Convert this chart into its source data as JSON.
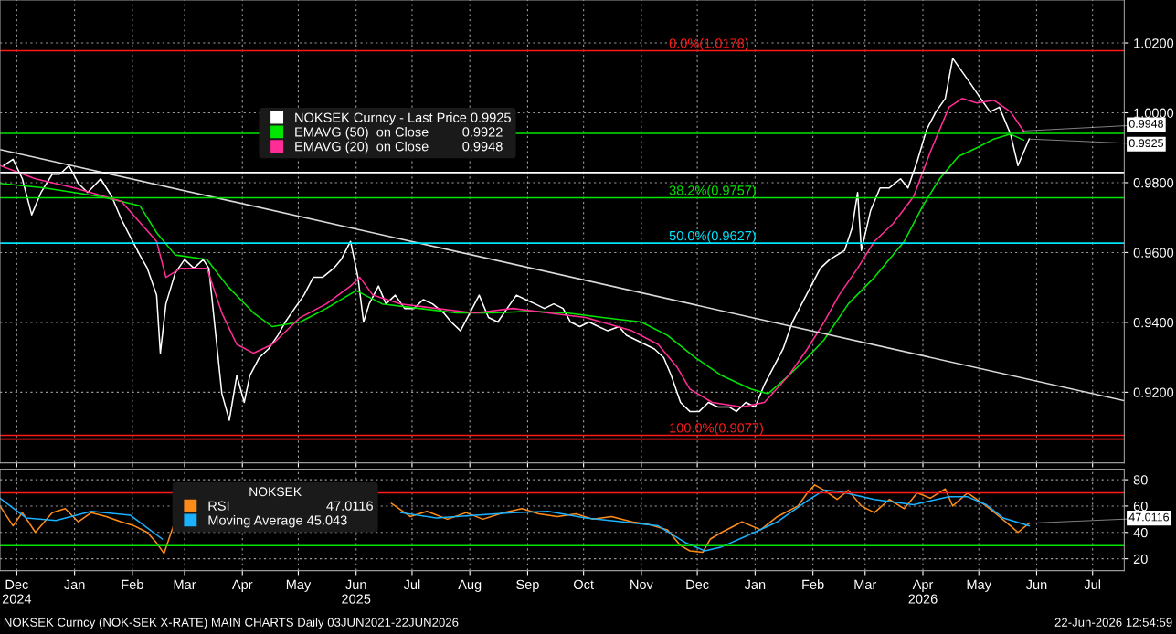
{
  "chart_data": [
    {
      "type": "line",
      "xlim": [
        "2024-12-06",
        "2026-08-01"
      ],
      "ylim": [
        0.8998,
        1.0323
      ],
      "yticks": [
        {
          "value": 0.92,
          "label": "0.9200"
        },
        {
          "value": 0.94,
          "label": "0.9400"
        },
        {
          "value": 0.96,
          "label": "0.9600"
        },
        {
          "value": 0.98,
          "label": "0.9800"
        },
        {
          "value": 1.0,
          "label": "1.0000"
        },
        {
          "value": 1.02,
          "label": "1.0200"
        }
      ],
      "xticks": [
        {
          "value": "2024-12-15",
          "label": null
        },
        {
          "value": "2025-01-15",
          "label": null
        },
        {
          "value": "2025-02-15",
          "label": null
        },
        {
          "value": "2025-03-15",
          "label": null
        },
        {
          "value": "2025-04-15",
          "label": null
        },
        {
          "value": "2025-05-15",
          "label": null
        },
        {
          "value": "2025-06-15",
          "label": null
        },
        {
          "value": "2025-07-15",
          "label": null
        },
        {
          "value": "2025-08-15",
          "label": null
        },
        {
          "value": "2025-09-15",
          "label": null
        },
        {
          "value": "2025-10-15",
          "label": null
        },
        {
          "value": "2025-11-15",
          "label": null
        },
        {
          "value": "2025-12-15",
          "label": null
        },
        {
          "value": "2026-01-15",
          "label": null
        },
        {
          "value": "2026-02-15",
          "label": null
        },
        {
          "value": "2026-03-15",
          "label": null
        },
        {
          "value": "2026-04-15",
          "label": null
        },
        {
          "value": "2026-05-15",
          "label": null
        },
        {
          "value": "2026-06-15",
          "label": null
        },
        {
          "value": "2026-07-15",
          "label": null
        }
      ],
      "tick_labels": "y",
      "grid": true,
      "legend": "top left",
      "series": [
        {
          "name": "NOKSEK Curncy - Last Price 0.9925",
          "color": "#ffffff",
          "x": [
            "2024-12-08",
            "2024-12-13",
            "2024-12-18",
            "2024-12-23",
            "2024-12-28",
            "2025-01-03",
            "2025-01-07",
            "2025-01-12",
            "2025-01-17",
            "2025-01-22",
            "2025-01-29",
            "2025-02-04",
            "2025-02-09",
            "2025-02-14",
            "2025-02-19",
            "2025-02-23",
            "2025-02-28",
            "2025-03-02",
            "2025-03-05",
            "2025-03-10",
            "2025-03-15",
            "2025-03-20",
            "2025-03-25",
            "2025-03-28",
            "2025-04-01",
            "2025-04-04",
            "2025-04-08",
            "2025-04-12",
            "2025-04-16",
            "2025-04-19",
            "2025-04-24",
            "2025-04-29",
            "2025-05-04",
            "2025-05-08",
            "2025-05-13",
            "2025-05-18",
            "2025-05-23",
            "2025-05-28",
            "2025-06-03",
            "2025-06-07",
            "2025-06-12",
            "2025-06-16",
            "2025-06-19",
            "2025-06-22",
            "2025-06-27",
            "2025-07-01",
            "2025-07-06",
            "2025-07-11",
            "2025-07-16",
            "2025-07-21",
            "2025-07-26",
            "2025-08-01",
            "2025-08-05",
            "2025-08-10",
            "2025-08-15",
            "2025-08-20",
            "2025-08-25",
            "2025-08-30",
            "2025-09-04",
            "2025-09-09",
            "2025-09-14",
            "2025-09-19",
            "2025-09-24",
            "2025-09-29",
            "2025-10-04",
            "2025-10-08",
            "2025-10-13",
            "2025-10-18",
            "2025-10-23",
            "2025-10-28",
            "2025-11-03",
            "2025-11-07",
            "2025-11-12",
            "2025-11-17",
            "2025-11-22",
            "2025-11-27",
            "2025-12-01",
            "2025-12-06",
            "2025-12-11",
            "2025-12-16",
            "2025-12-21",
            "2025-12-26",
            "2026-01-01",
            "2026-01-05",
            "2026-01-10",
            "2026-01-15",
            "2026-01-20",
            "2026-01-25",
            "2026-01-30",
            "2026-02-04",
            "2026-02-09",
            "2026-02-14",
            "2026-02-19",
            "2026-02-24",
            "2026-02-28",
            "2026-03-04",
            "2026-03-08",
            "2026-03-11",
            "2026-03-13",
            "2026-03-18",
            "2026-03-23",
            "2026-03-28",
            "2026-04-03",
            "2026-04-07",
            "2026-04-12",
            "2026-04-17",
            "2026-04-22",
            "2026-04-27",
            "2026-05-01",
            "2026-05-06",
            "2026-05-11",
            "2026-05-16",
            "2026-05-21",
            "2026-05-26",
            "2026-06-01",
            "2026-06-05",
            "2026-06-11"
          ],
          "values": [
            0.9849,
            0.9867,
            0.9811,
            0.9708,
            0.9772,
            0.9824,
            0.9824,
            0.9849,
            0.9798,
            0.9772,
            0.9811,
            0.976,
            0.9696,
            0.9644,
            0.9593,
            0.9555,
            0.9478,
            0.9312,
            0.9453,
            0.9542,
            0.958,
            0.9555,
            0.958,
            0.9555,
            0.935,
            0.9196,
            0.912,
            0.9248,
            0.9171,
            0.9248,
            0.9299,
            0.9324,
            0.9363,
            0.9401,
            0.944,
            0.9478,
            0.9529,
            0.9529,
            0.9555,
            0.958,
            0.9632,
            0.9529,
            0.9401,
            0.9453,
            0.9504,
            0.9453,
            0.9478,
            0.944,
            0.944,
            0.9465,
            0.9453,
            0.9427,
            0.9401,
            0.9376,
            0.9427,
            0.9478,
            0.9414,
            0.9401,
            0.944,
            0.9478,
            0.9465,
            0.9453,
            0.944,
            0.9453,
            0.944,
            0.9401,
            0.9388,
            0.9401,
            0.9388,
            0.9376,
            0.9388,
            0.9363,
            0.935,
            0.9337,
            0.9324,
            0.9299,
            0.9248,
            0.9171,
            0.9145,
            0.9145,
            0.9171,
            0.9158,
            0.9158,
            0.9145,
            0.9171,
            0.9158,
            0.9222,
            0.9273,
            0.9324,
            0.9401,
            0.9453,
            0.9504,
            0.9555,
            0.958,
            0.9593,
            0.9606,
            0.967,
            0.9772,
            0.9606,
            0.9721,
            0.9785,
            0.9785,
            0.9811,
            0.9785,
            0.9862,
            0.9952,
            1.0003,
            1.0041,
            1.0156,
            1.0118,
            1.008,
            1.0041,
            1.0003,
            1.0016,
            0.9939,
            0.9849,
            0.9925
          ]
        },
        {
          "name": "EMAVG (50)  on Close         0.9922",
          "color": "#00e600",
          "x": [
            "2024-12-06",
            "2024-12-30",
            "2025-01-29",
            "2025-02-19",
            "2025-02-28",
            "2025-03-10",
            "2025-03-27",
            "2025-04-07",
            "2025-04-21",
            "2025-05-01",
            "2025-05-16",
            "2025-05-30",
            "2025-06-15",
            "2025-06-29",
            "2025-07-19",
            "2025-08-08",
            "2025-08-27",
            "2025-09-16",
            "2025-10-06",
            "2025-10-25",
            "2025-11-15",
            "2025-11-29",
            "2025-12-14",
            "2025-12-28",
            "2026-01-13",
            "2026-01-22",
            "2026-02-02",
            "2026-02-12",
            "2026-02-21",
            "2026-03-06",
            "2026-03-20",
            "2026-04-05",
            "2026-04-15",
            "2026-04-24",
            "2026-05-04",
            "2026-05-14",
            "2026-05-23",
            "2026-06-01",
            "2026-06-08"
          ],
          "values": [
            0.9798,
            0.9785,
            0.976,
            0.9734,
            0.9657,
            0.9593,
            0.958,
            0.9504,
            0.9427,
            0.9388,
            0.9401,
            0.944,
            0.9491,
            0.9453,
            0.944,
            0.9427,
            0.9427,
            0.9432,
            0.9427,
            0.9414,
            0.9401,
            0.9363,
            0.9299,
            0.9248,
            0.9209,
            0.9196,
            0.9248,
            0.9299,
            0.935,
            0.9453,
            0.9529,
            0.9632,
            0.9734,
            0.9811,
            0.9875,
            0.99,
            0.9925,
            0.9939,
            0.9922
          ]
        },
        {
          "name": "EMAVG (20)  on Close         0.9948",
          "color": "#ff2d95",
          "x": [
            "2024-12-06",
            "2024-12-25",
            "2025-01-15",
            "2025-02-09",
            "2025-02-28",
            "2025-03-05",
            "2025-03-13",
            "2025-03-27",
            "2025-04-04",
            "2025-04-12",
            "2025-04-21",
            "2025-05-01",
            "2025-05-16",
            "2025-05-30",
            "2025-06-12",
            "2025-06-17",
            "2025-06-24",
            "2025-07-09",
            "2025-07-28",
            "2025-08-18",
            "2025-09-07",
            "2025-09-26",
            "2025-10-16",
            "2025-11-10",
            "2025-11-24",
            "2025-12-04",
            "2025-12-11",
            "2025-12-23",
            "2026-01-08",
            "2026-01-20",
            "2026-02-02",
            "2026-02-12",
            "2026-02-21",
            "2026-03-01",
            "2026-03-11",
            "2026-03-20",
            "2026-03-30",
            "2026-04-10",
            "2026-04-19",
            "2026-04-29",
            "2026-05-06",
            "2026-05-14",
            "2026-05-23",
            "2026-06-01",
            "2026-06-08"
          ],
          "values": [
            0.9849,
            0.9811,
            0.9785,
            0.9747,
            0.9632,
            0.9529,
            0.9555,
            0.9555,
            0.9427,
            0.9337,
            0.9312,
            0.9337,
            0.9414,
            0.9453,
            0.9504,
            0.9529,
            0.9478,
            0.9453,
            0.944,
            0.9427,
            0.944,
            0.9427,
            0.9414,
            0.9376,
            0.9337,
            0.9273,
            0.9209,
            0.9171,
            0.9158,
            0.9171,
            0.9248,
            0.9324,
            0.9401,
            0.9478,
            0.9555,
            0.9632,
            0.9683,
            0.976,
            0.9888,
            1.0016,
            1.0041,
            1.0028,
            1.0036,
            1.0003,
            0.9948
          ]
        },
        {
          "type": "line",
          "color": "#d9d9d9",
          "x": [
            "2024-12-06",
            "2026-08-01"
          ],
          "values": [
            0.9895,
            0.9176
          ]
        }
      ],
      "ref_lines": [
        {
          "axis": "y",
          "value": 1.0178,
          "label": "0.0%(1.0178)",
          "color": "#ff1a1a"
        },
        {
          "axis": "y",
          "value": 0.9941,
          "color": "#00e600"
        },
        {
          "axis": "y",
          "value": 0.9829,
          "color": "#ffffff"
        },
        {
          "axis": "y",
          "value": 0.9757,
          "label": "38.2%(0.9757)",
          "color": "#00e600"
        },
        {
          "axis": "y",
          "value": 0.9627,
          "label": "50.0%(0.9627)",
          "color": "#00e5ff"
        },
        {
          "axis": "y",
          "value": 0.9077,
          "label": "100.0%(0.9077)",
          "color": "#ff1a1a"
        },
        {
          "axis": "y",
          "value": 0.9066,
          "color": "#ff1a1a"
        }
      ],
      "annotations": [
        {
          "text": "0.9948",
          "x": "2026-06-08",
          "y": 0.9948
        },
        {
          "text": "0.9925",
          "x": "2026-06-11",
          "y": 0.9925
        }
      ]
    },
    {
      "type": "line",
      "xlim": [
        "2024-12-06",
        "2026-08-01"
      ],
      "ylim": [
        11,
        88
      ],
      "yticks": [
        20,
        40,
        60,
        80
      ],
      "xticks": [
        {
          "value": "2024-12-15",
          "label": "Dec\n2024"
        },
        {
          "value": "2025-01-15",
          "label": "Jan"
        },
        {
          "value": "2025-02-15",
          "label": "Feb"
        },
        {
          "value": "2025-03-15",
          "label": "Mar"
        },
        {
          "value": "2025-04-15",
          "label": "Apr"
        },
        {
          "value": "2025-05-15",
          "label": "May"
        },
        {
          "value": "2025-06-15",
          "label": "Jun\n2025"
        },
        {
          "value": "2025-07-15",
          "label": "Jul"
        },
        {
          "value": "2025-08-15",
          "label": "Aug"
        },
        {
          "value": "2025-09-15",
          "label": "Sep"
        },
        {
          "value": "2025-10-15",
          "label": "Oct"
        },
        {
          "value": "2025-11-15",
          "label": "Nov"
        },
        {
          "value": "2025-12-15",
          "label": "Dec"
        },
        {
          "value": "2026-01-15",
          "label": "Jan"
        },
        {
          "value": "2026-02-15",
          "label": "Feb"
        },
        {
          "value": "2026-03-15",
          "label": "Mar"
        },
        {
          "value": "2026-04-15",
          "label": "Apr\n2026"
        },
        {
          "value": "2026-05-15",
          "label": "May"
        },
        {
          "value": "2026-06-15",
          "label": "Jun"
        },
        {
          "value": "2026-07-15",
          "label": "Jul"
        }
      ],
      "grid": true,
      "legend": "top left",
      "legend_title": "NOKSEK",
      "series": [
        {
          "name": "RSI                          47.0116",
          "color": "#ff8c1a",
          "x": [
            "2024-12-06",
            "2024-12-13",
            "2024-12-18",
            "2024-12-25",
            "2025-01-03",
            "2025-01-10",
            "2025-01-17",
            "2025-01-24",
            "2025-02-01",
            "2025-02-09",
            "2025-02-16",
            "2025-02-23",
            "2025-02-28",
            "2025-03-04",
            "2025-03-09",
            "2025-03-15",
            "2025-03-22",
            "2025-03-28",
            "2025-04-02",
            "2025-04-06",
            "2025-04-13",
            "2025-04-21",
            "2025-04-29",
            "2025-05-06",
            "2025-05-13",
            "2025-05-23",
            "2025-06-03",
            "2025-06-10",
            "2025-06-17",
            "2025-06-24",
            "2025-07-04",
            "2025-07-14",
            "2025-07-23",
            "2025-08-03",
            "2025-08-13",
            "2025-08-22",
            "2025-09-02",
            "2025-09-12",
            "2025-09-21",
            "2025-10-01",
            "2025-10-11",
            "2025-10-20",
            "2025-10-30",
            "2025-11-10",
            "2025-11-19",
            "2025-11-29",
            "2025-12-06",
            "2025-12-11",
            "2025-12-18",
            "2025-12-22",
            "2025-12-28",
            "2026-01-08",
            "2026-01-18",
            "2026-01-27",
            "2026-02-07",
            "2026-02-12",
            "2026-02-16",
            "2026-02-21",
            "2026-02-28",
            "2026-03-06",
            "2026-03-13",
            "2026-03-20",
            "2026-03-28",
            "2026-04-05",
            "2026-04-12",
            "2026-04-19",
            "2026-04-27",
            "2026-05-01",
            "2026-05-09",
            "2026-05-19",
            "2026-05-26",
            "2026-06-01",
            "2026-06-05",
            "2026-06-11"
          ],
          "values": [
            60,
            45,
            55,
            40,
            55,
            58,
            48,
            55,
            52,
            48,
            45,
            40,
            32,
            24,
            45,
            55,
            60,
            null,
            null,
            null,
            null,
            null,
            null,
            null,
            null,
            null,
            null,
            null,
            null,
            null,
            62,
            52,
            56,
            50,
            55,
            50,
            55,
            58,
            54,
            52,
            54,
            50,
            52,
            48,
            46,
            42,
            30,
            26,
            25,
            35,
            40,
            48,
            42,
            52,
            60,
            70,
            76,
            72,
            65,
            72,
            60,
            55,
            65,
            58,
            70,
            66,
            73,
            60,
            70,
            60,
            52,
            45,
            40,
            47
          ]
        },
        {
          "name": "Moving Average 45.043",
          "color": "#1ab2ff",
          "x": [
            "2024-12-06",
            "2024-12-20",
            "2025-01-05",
            "2025-01-24",
            "2025-02-14",
            "2025-03-03",
            "2025-03-13",
            "2025-03-27",
            "2025-04-12",
            "2025-05-01",
            "2025-05-20",
            "2025-06-10",
            "2025-06-24",
            "2025-07-09",
            "2025-07-28",
            "2025-08-18",
            "2025-09-07",
            "2025-09-26",
            "2025-10-16",
            "2025-11-05",
            "2025-11-24",
            "2025-12-09",
            "2025-12-19",
            "2025-12-28",
            "2026-01-13",
            "2026-01-27",
            "2026-02-12",
            "2026-02-21",
            "2026-03-01",
            "2026-03-20",
            "2026-04-10",
            "2026-04-19",
            "2026-04-29",
            "2026-05-09",
            "2026-05-19",
            "2026-05-28",
            "2026-06-11"
          ],
          "values": [
            66,
            51,
            49,
            56,
            53,
            35,
            null,
            null,
            null,
            null,
            null,
            null,
            null,
            55,
            51,
            53,
            55,
            56,
            51,
            48,
            45,
            32,
            26,
            29,
            39,
            48,
            64,
            72,
            71,
            65,
            61,
            64,
            67,
            67,
            61,
            51,
            45
          ]
        }
      ],
      "ref_lines": [
        {
          "axis": "y",
          "value": 70,
          "color": "#ff1a1a"
        },
        {
          "axis": "y",
          "value": 30,
          "color": "#00e600"
        }
      ],
      "annotations": [
        {
          "text": "47.0116",
          "x": "2026-06-11",
          "y": 47
        },
        "NOKSEK Curncy (NOK-SEK X-RATE) MAIN CHARTS Daily 03JUN2021-22JUN2026",
        "22-Jun-2026 12:54:59"
      ]
    }
  ]
}
